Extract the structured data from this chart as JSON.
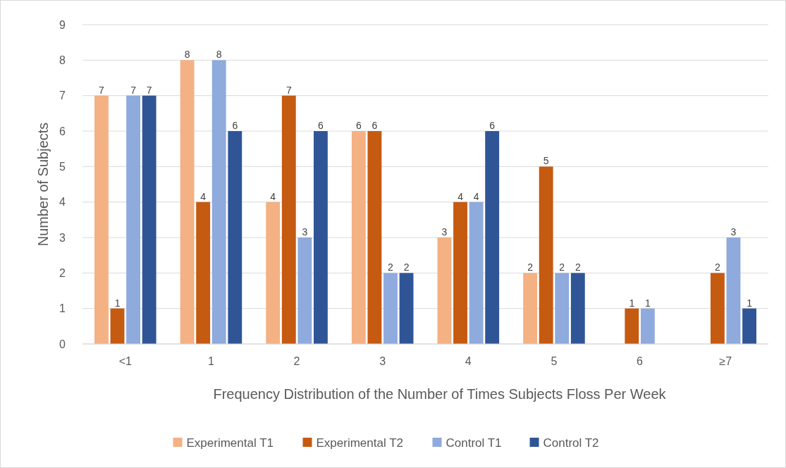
{
  "chart_data": {
    "type": "bar",
    "xlabel": "Frequency Distribution of the Number of Times Subjects Floss Per Week",
    "ylabel": "Number of Subjects",
    "categories": [
      "<1",
      "1",
      "2",
      "3",
      "4",
      "5",
      "6",
      "≥7"
    ],
    "series": [
      {
        "name": "Experimental T1",
        "color": "#f4b183",
        "values": [
          7,
          8,
          4,
          6,
          3,
          2,
          null,
          null
        ]
      },
      {
        "name": "Experimental T2",
        "color": "#c55a11",
        "values": [
          1,
          4,
          7,
          6,
          4,
          5,
          1,
          2
        ]
      },
      {
        "name": "Control T1",
        "color": "#8faadc",
        "values": [
          7,
          8,
          3,
          2,
          4,
          2,
          1,
          3
        ]
      },
      {
        "name": "Control T2",
        "color": "#2f5597",
        "values": [
          7,
          6,
          6,
          2,
          6,
          2,
          null,
          1
        ]
      }
    ],
    "ylim": [
      0,
      9
    ],
    "yticks": [
      0,
      1,
      2,
      3,
      4,
      5,
      6,
      7,
      8,
      9
    ],
    "grid": "y",
    "legend": "bottom",
    "data_labels": true
  }
}
